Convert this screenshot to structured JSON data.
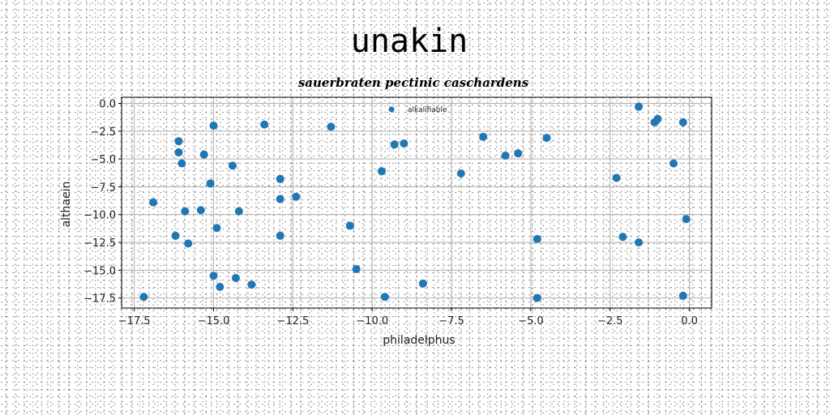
{
  "chart_data": {
    "type": "scatter",
    "title": "unakin",
    "subtitle": "sauerbraten pectinic caschardens",
    "xlabel": "philadelphus",
    "ylabel": "althaein",
    "xlim": [
      -17.9,
      0.7
    ],
    "ylim": [
      -18.4,
      0.55
    ],
    "xticks": [
      -17.5,
      -15.0,
      -12.5,
      -10.0,
      -7.5,
      -5.0,
      -2.5,
      0.0
    ],
    "xtick_labels": [
      "−17.5",
      "−15.0",
      "−12.5",
      "−10.0",
      "−7.5",
      "−5.0",
      "−2.5",
      "0.0"
    ],
    "yticks": [
      0.0,
      -2.5,
      -5.0,
      -7.5,
      -10.0,
      -12.5,
      -15.0,
      -17.5
    ],
    "ytick_labels": [
      "0.0",
      "−2.5",
      "−5.0",
      "−7.5",
      "−10.0",
      "−12.5",
      "−15.0",
      "−17.5"
    ],
    "grid": true,
    "legend_position": "top-center",
    "color": "#1f77b4",
    "series": [
      {
        "name": "alkalifiable",
        "x": [
          -17.2,
          -16.9,
          -16.1,
          -16.0,
          -15.9,
          -16.1,
          -16.2,
          -15.8,
          -15.3,
          -15.4,
          -15.0,
          -15.1,
          -14.9,
          -14.8,
          -15.0,
          -14.4,
          -14.2,
          -14.3,
          -13.8,
          -13.4,
          -12.9,
          -12.9,
          -12.9,
          -12.4,
          -11.3,
          -10.7,
          -10.5,
          -9.7,
          -9.3,
          -9.0,
          -9.6,
          -8.4,
          -7.2,
          -6.5,
          -5.8,
          -5.4,
          -4.8,
          -4.5,
          -4.8,
          -2.3,
          -2.1,
          -1.6,
          -1.6,
          -1.1,
          -1.0,
          -0.5,
          -0.2,
          -0.2,
          -0.1
        ],
        "y": [
          -17.4,
          -8.9,
          -3.4,
          -5.4,
          -9.7,
          -4.4,
          -11.9,
          -12.6,
          -4.6,
          -9.6,
          -2.0,
          -7.2,
          -11.2,
          -16.5,
          -15.5,
          -5.6,
          -9.7,
          -15.7,
          -16.3,
          -1.9,
          -6.8,
          -8.6,
          -11.9,
          -8.4,
          -2.1,
          -11.0,
          -14.9,
          -6.1,
          -3.7,
          -3.6,
          -17.4,
          -16.2,
          -6.3,
          -3.0,
          -4.7,
          -4.5,
          -12.2,
          -3.1,
          -17.5,
          -6.7,
          -12.0,
          -0.3,
          -12.5,
          -1.7,
          -1.4,
          -5.4,
          -1.7,
          -17.3,
          -10.4
        ]
      }
    ]
  }
}
